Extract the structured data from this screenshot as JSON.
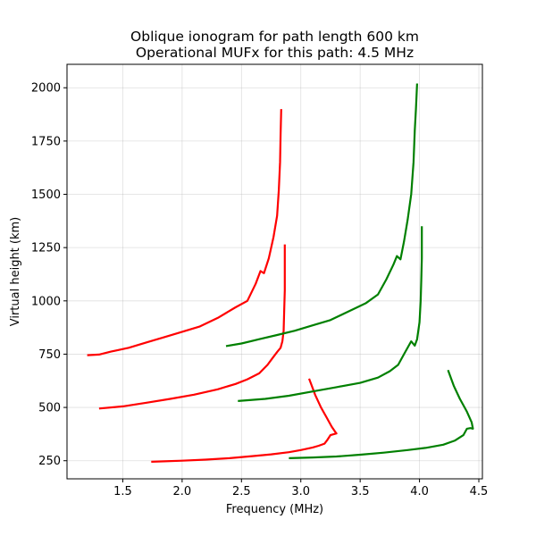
{
  "chart_data": {
    "type": "line",
    "title": "Oblique ionogram for path length 600 km",
    "subtitle": "Operational MUFx for this path: 4.5 MHz",
    "xlabel": "Frequency (MHz)",
    "ylabel": "Virtual height (km)",
    "xlim": [
      1.03,
      4.53
    ],
    "ylim": [
      165,
      2110
    ],
    "xticks": [
      1.5,
      2.0,
      2.5,
      3.0,
      3.5,
      4.0,
      4.5
    ],
    "xtick_labels": [
      "1.5",
      "2.0",
      "2.5",
      "3.0",
      "3.5",
      "4.0",
      "4.5"
    ],
    "yticks": [
      250,
      500,
      750,
      1000,
      1250,
      1500,
      1750,
      2000
    ],
    "ytick_labels": [
      "250",
      "500",
      "750",
      "1000",
      "1250",
      "1500",
      "1750",
      "2000"
    ],
    "grid": true,
    "colors": {
      "o_trace": "#ff0000",
      "x_trace": "#008000"
    },
    "series": [
      {
        "color": "#ff0000",
        "points": [
          [
            1.74,
            245
          ],
          [
            1.85,
            247
          ],
          [
            2.0,
            250
          ],
          [
            2.2,
            255
          ],
          [
            2.4,
            262
          ],
          [
            2.6,
            272
          ],
          [
            2.75,
            280
          ],
          [
            2.9,
            290
          ],
          [
            3.0,
            300
          ],
          [
            3.1,
            312
          ],
          [
            3.15,
            320
          ],
          [
            3.2,
            330
          ],
          [
            3.22,
            345
          ],
          [
            3.25,
            370
          ],
          [
            3.3,
            378
          ],
          [
            3.29,
            385
          ],
          [
            3.26,
            410
          ],
          [
            3.22,
            450
          ],
          [
            3.17,
            500
          ],
          [
            3.12,
            560
          ],
          [
            3.09,
            605
          ],
          [
            3.07,
            635
          ]
        ]
      },
      {
        "color": "#ff0000",
        "points": [
          [
            1.3,
            495
          ],
          [
            1.5,
            505
          ],
          [
            1.7,
            522
          ],
          [
            1.9,
            540
          ],
          [
            2.1,
            560
          ],
          [
            2.3,
            585
          ],
          [
            2.45,
            610
          ],
          [
            2.55,
            632
          ],
          [
            2.65,
            660
          ],
          [
            2.72,
            700
          ],
          [
            2.76,
            730
          ],
          [
            2.8,
            760
          ],
          [
            2.83,
            780
          ],
          [
            2.845,
            810
          ],
          [
            2.855,
            860
          ],
          [
            2.86,
            950
          ],
          [
            2.865,
            1050
          ],
          [
            2.865,
            1150
          ],
          [
            2.865,
            1265
          ]
        ]
      },
      {
        "color": "#ff0000",
        "points": [
          [
            1.2,
            745
          ],
          [
            1.3,
            748
          ],
          [
            1.4,
            762
          ],
          [
            1.55,
            780
          ],
          [
            1.7,
            805
          ],
          [
            1.85,
            830
          ],
          [
            2.0,
            855
          ],
          [
            2.15,
            880
          ],
          [
            2.3,
            920
          ],
          [
            2.45,
            970
          ],
          [
            2.55,
            1000
          ],
          [
            2.62,
            1080
          ],
          [
            2.66,
            1140
          ],
          [
            2.69,
            1130
          ],
          [
            2.73,
            1200
          ],
          [
            2.77,
            1300
          ],
          [
            2.8,
            1400
          ],
          [
            2.815,
            1520
          ],
          [
            2.825,
            1650
          ],
          [
            2.83,
            1780
          ],
          [
            2.835,
            1900
          ]
        ]
      },
      {
        "color": "#008000",
        "points": [
          [
            2.9,
            262
          ],
          [
            3.1,
            265
          ],
          [
            3.3,
            270
          ],
          [
            3.5,
            278
          ],
          [
            3.7,
            288
          ],
          [
            3.9,
            300
          ],
          [
            4.05,
            310
          ],
          [
            4.2,
            325
          ],
          [
            4.3,
            345
          ],
          [
            4.37,
            370
          ],
          [
            4.4,
            400
          ],
          [
            4.43,
            403
          ],
          [
            4.45,
            400
          ],
          [
            4.44,
            430
          ],
          [
            4.4,
            480
          ],
          [
            4.34,
            540
          ],
          [
            4.29,
            600
          ],
          [
            4.24,
            675
          ]
        ]
      },
      {
        "color": "#008000",
        "points": [
          [
            2.47,
            530
          ],
          [
            2.7,
            540
          ],
          [
            2.9,
            555
          ],
          [
            3.1,
            575
          ],
          [
            3.3,
            595
          ],
          [
            3.5,
            615
          ],
          [
            3.65,
            640
          ],
          [
            3.75,
            670
          ],
          [
            3.82,
            700
          ],
          [
            3.87,
            750
          ],
          [
            3.91,
            790
          ],
          [
            3.93,
            810
          ],
          [
            3.96,
            790
          ],
          [
            3.98,
            820
          ],
          [
            4.0,
            900
          ],
          [
            4.01,
            1000
          ],
          [
            4.015,
            1100
          ],
          [
            4.02,
            1200
          ],
          [
            4.02,
            1350
          ]
        ]
      },
      {
        "color": "#008000",
        "points": [
          [
            2.37,
            788
          ],
          [
            2.5,
            800
          ],
          [
            2.65,
            820
          ],
          [
            2.8,
            840
          ],
          [
            2.95,
            860
          ],
          [
            3.1,
            885
          ],
          [
            3.25,
            910
          ],
          [
            3.4,
            950
          ],
          [
            3.55,
            990
          ],
          [
            3.65,
            1030
          ],
          [
            3.72,
            1100
          ],
          [
            3.78,
            1170
          ],
          [
            3.81,
            1210
          ],
          [
            3.84,
            1195
          ],
          [
            3.87,
            1280
          ],
          [
            3.9,
            1380
          ],
          [
            3.93,
            1500
          ],
          [
            3.95,
            1650
          ],
          [
            3.96,
            1800
          ],
          [
            3.97,
            1900
          ],
          [
            3.98,
            2020
          ]
        ]
      }
    ]
  }
}
